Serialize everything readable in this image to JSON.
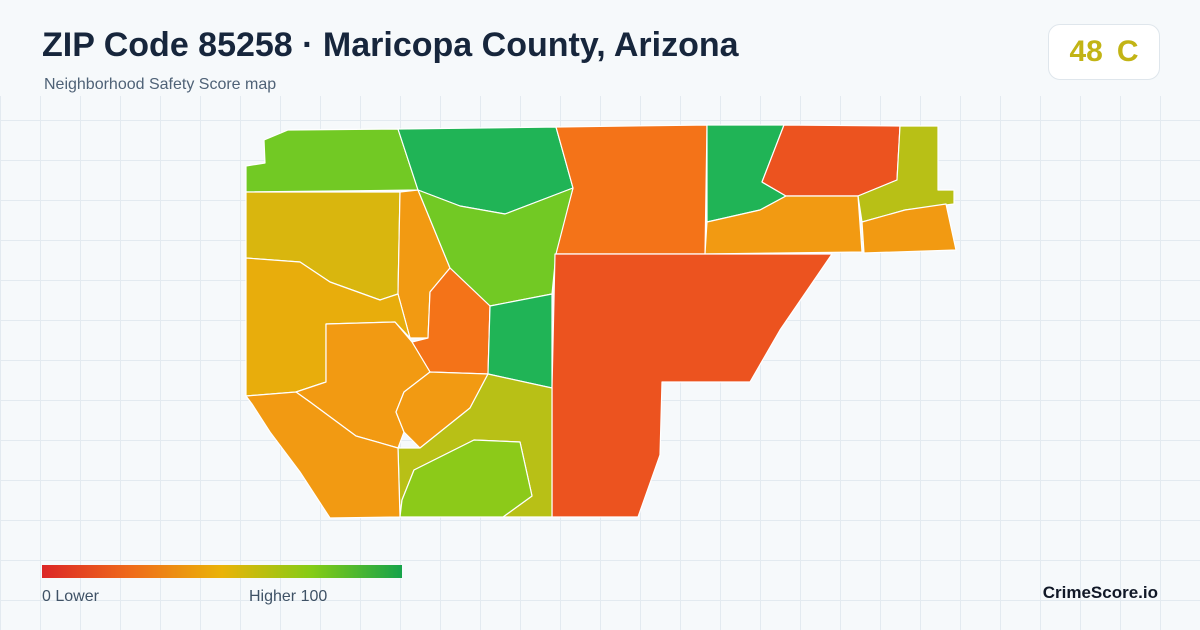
{
  "header": {
    "title": "ZIP Code 85258 · Maricopa County, Arizona",
    "subtitle": "Neighborhood Safety Score map"
  },
  "score_badge": {
    "score": "48",
    "grade": "C",
    "color": "#c2b415"
  },
  "legend": {
    "low_label": "0  Lower",
    "high_label": "Higher  100",
    "colors": [
      "#dc2626",
      "#ef6c1a",
      "#eab308",
      "#84cc16",
      "#16a34a"
    ]
  },
  "brand": "CrimeScore.io",
  "map": {
    "fill_colors": {
      "red_orange": "#ec531f",
      "orange": "#f47318",
      "amber": "#f29a12",
      "gold": "#e8ad0c",
      "yellow": "#d9b60e",
      "olive": "#b8c016",
      "lime": "#8cca19",
      "light_green": "#72c924",
      "green_mid": "#5dc534",
      "green": "#20b456"
    }
  }
}
